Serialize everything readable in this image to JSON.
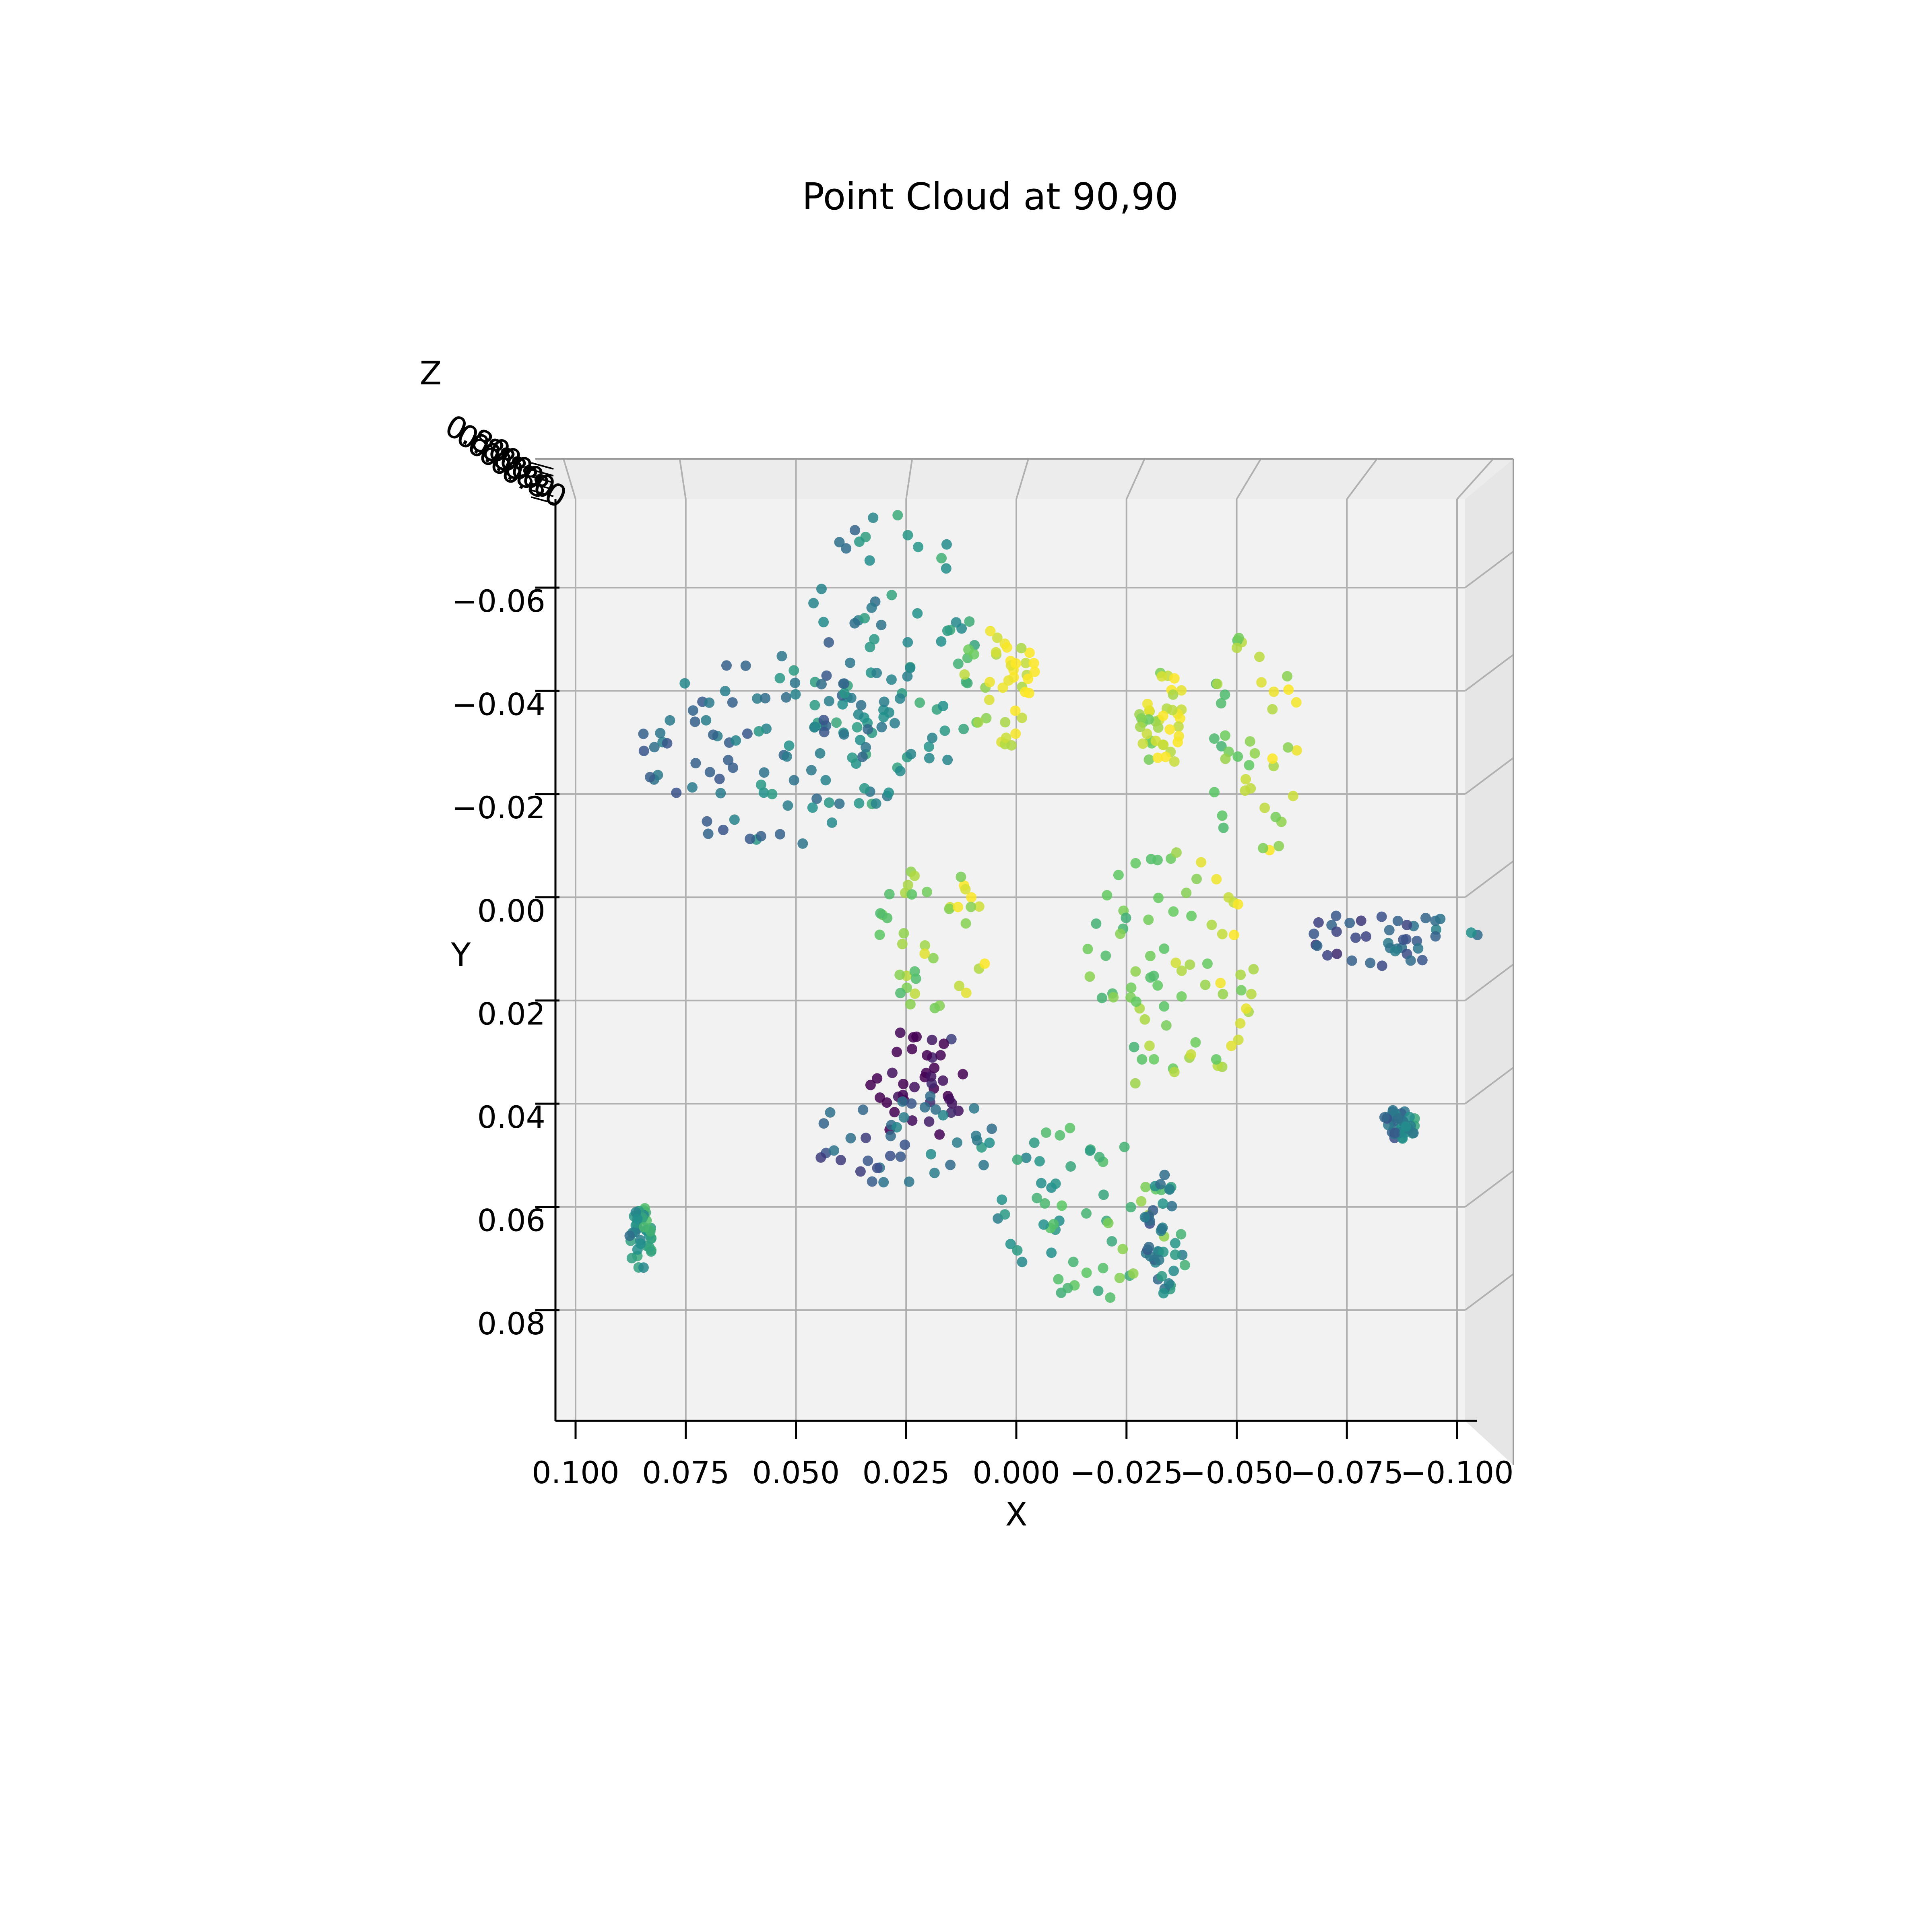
{
  "chart_data": {
    "type": "scatter",
    "title": "Point Cloud at  90,90",
    "xlabel": "X",
    "ylabel": "Y",
    "zlabel": "Z",
    "view": {
      "elev": 90,
      "azim": 90
    },
    "x_ticks": [
      "0.100",
      "0.075",
      "0.050",
      "0.025",
      "0.000",
      "−0.025",
      "−0.050",
      "−0.075",
      "−0.100"
    ],
    "x_tick_values": [
      0.1,
      0.075,
      0.05,
      0.025,
      0.0,
      -0.025,
      -0.05,
      -0.075,
      -0.1
    ],
    "y_ticks": [
      "−0.06",
      "−0.04",
      "−0.02",
      "0.00",
      "0.02",
      "0.04",
      "0.06",
      "0.08"
    ],
    "y_tick_values": [
      -0.06,
      -0.04,
      -0.02,
      0.0,
      0.02,
      0.04,
      0.06,
      0.08
    ],
    "xlim": [
      0.1,
      -0.1
    ],
    "ylim": [
      -0.08,
      0.1
    ],
    "z_ticks_note": "overlapping unreadable Z tick labels near 0.80",
    "z_tick_text": "0.80",
    "grid": true,
    "colormap": {
      "low": "#440154",
      "mid1": "#31688e",
      "mid2": "#21918c",
      "mid3": "#5ec962",
      "high": "#fde725"
    },
    "pane_color": "#f2f2f2",
    "gridline_color": "#b0b0b0",
    "regions": [
      {
        "name": "left-upper-leaf",
        "center": [
          0.056,
          -0.028
        ],
        "rx": 0.031,
        "ry": 0.019,
        "color_value": 0.42
      },
      {
        "name": "top-center-leaf",
        "center": [
          0.028,
          -0.047
        ],
        "rx": 0.02,
        "ry": 0.028,
        "color_value": 0.48
      },
      {
        "name": "top-center-right-lobe",
        "center": [
          0.004,
          -0.04
        ],
        "rx": 0.009,
        "ry": 0.013,
        "color_value": 0.9
      },
      {
        "name": "right-upper-leaf",
        "center": [
          -0.054,
          -0.03
        ],
        "rx": 0.011,
        "ry": 0.024,
        "color_value": 0.85
      },
      {
        "name": "right-upper-stem",
        "center": [
          -0.033,
          -0.035
        ],
        "rx": 0.006,
        "ry": 0.01,
        "color_value": 0.92
      },
      {
        "name": "right-middle-leaf",
        "center": [
          -0.034,
          0.015
        ],
        "rx": 0.02,
        "ry": 0.024,
        "color_value": 0.8
      },
      {
        "name": "center-bulb",
        "center": [
          0.019,
          0.008
        ],
        "rx": 0.013,
        "ry": 0.014,
        "color_value": 0.85
      },
      {
        "name": "center-dark-core",
        "center": [
          0.022,
          0.036
        ],
        "rx": 0.013,
        "ry": 0.011,
        "color_value": 0.0
      },
      {
        "name": "bottom-left-leaf",
        "center": [
          0.025,
          0.047
        ],
        "rx": 0.022,
        "ry": 0.009,
        "color_value": 0.35
      },
      {
        "name": "bottom-center-leaf",
        "center": [
          -0.015,
          0.062
        ],
        "rx": 0.02,
        "ry": 0.018,
        "color_value": 0.65
      },
      {
        "name": "bottom-right-stem",
        "center": [
          -0.034,
          0.065
        ],
        "rx": 0.005,
        "ry": 0.012,
        "color_value": 0.45
      },
      {
        "name": "far-left-fragment",
        "center": [
          0.085,
          0.066
        ],
        "rx": 0.003,
        "ry": 0.006,
        "color_value": 0.55
      },
      {
        "name": "far-right-fragment",
        "center": [
          -0.085,
          0.008
        ],
        "rx": 0.02,
        "ry": 0.006,
        "color_value": 0.3
      },
      {
        "name": "right-lower-fragment",
        "center": [
          -0.087,
          0.044
        ],
        "rx": 0.004,
        "ry": 0.003,
        "color_value": 0.4
      }
    ]
  }
}
